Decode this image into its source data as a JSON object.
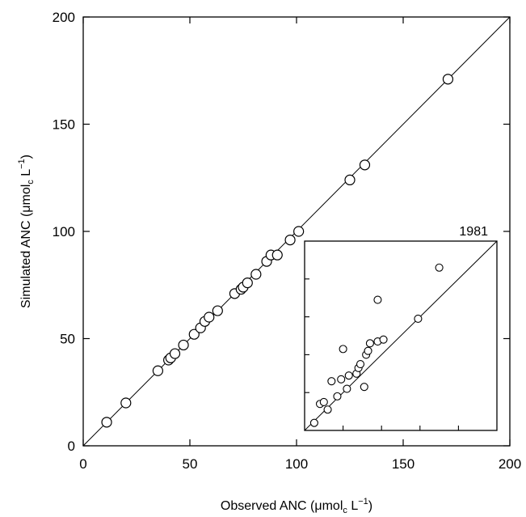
{
  "chart_data": [
    {
      "type": "scatter",
      "title": "",
      "xlabel": "Observed ANC (μmol",
      "xlabel_sub": "c",
      "xlabel_tail": " L",
      "xlabel_sup": "−1",
      "xlabel_close": ")",
      "ylabel": "Simulated ANC (μmol",
      "ylabel_sub": "c",
      "ylabel_tail": " L",
      "ylabel_sup": "−1",
      "ylabel_close": ")",
      "xlim": [
        0,
        200
      ],
      "ylim": [
        0,
        200
      ],
      "xticks": [
        0,
        50,
        100,
        150,
        200
      ],
      "yticks": [
        0,
        50,
        100,
        150,
        200
      ],
      "grid": false,
      "reference_line": "1:1",
      "marker": "open-circle",
      "points": [
        {
          "x": 11,
          "y": 11
        },
        {
          "x": 20,
          "y": 20
        },
        {
          "x": 35,
          "y": 35
        },
        {
          "x": 40,
          "y": 40
        },
        {
          "x": 41,
          "y": 41
        },
        {
          "x": 43,
          "y": 43
        },
        {
          "x": 47,
          "y": 47
        },
        {
          "x": 52,
          "y": 52
        },
        {
          "x": 55,
          "y": 55
        },
        {
          "x": 57,
          "y": 58
        },
        {
          "x": 59,
          "y": 60
        },
        {
          "x": 63,
          "y": 63
        },
        {
          "x": 71,
          "y": 71
        },
        {
          "x": 74,
          "y": 73
        },
        {
          "x": 75,
          "y": 74
        },
        {
          "x": 77,
          "y": 76
        },
        {
          "x": 81,
          "y": 80
        },
        {
          "x": 86,
          "y": 86
        },
        {
          "x": 88,
          "y": 89
        },
        {
          "x": 91,
          "y": 89
        },
        {
          "x": 97,
          "y": 96
        },
        {
          "x": 101,
          "y": 100
        },
        {
          "x": 125,
          "y": 124
        },
        {
          "x": 132,
          "y": 131
        },
        {
          "x": 171,
          "y": 171
        }
      ]
    },
    {
      "type": "scatter",
      "title": "1981",
      "reference_line": "1:1",
      "marker": "open-circle",
      "axis_labels_shown": false,
      "xlim": [
        0,
        100
      ],
      "ylim": [
        0,
        100
      ],
      "yticks": [
        0,
        20,
        40,
        60,
        80,
        100
      ],
      "xticks": [
        0,
        20,
        40,
        60,
        80,
        100
      ],
      "points": [
        {
          "x": 5,
          "y": 4
        },
        {
          "x": 8,
          "y": 14
        },
        {
          "x": 10,
          "y": 15
        },
        {
          "x": 12,
          "y": 11
        },
        {
          "x": 14,
          "y": 26
        },
        {
          "x": 17,
          "y": 18
        },
        {
          "x": 19,
          "y": 27
        },
        {
          "x": 20,
          "y": 43
        },
        {
          "x": 22,
          "y": 22
        },
        {
          "x": 23,
          "y": 29
        },
        {
          "x": 27,
          "y": 30
        },
        {
          "x": 28,
          "y": 33
        },
        {
          "x": 29,
          "y": 35
        },
        {
          "x": 31,
          "y": 23
        },
        {
          "x": 32,
          "y": 40
        },
        {
          "x": 33,
          "y": 42
        },
        {
          "x": 34,
          "y": 46
        },
        {
          "x": 38,
          "y": 47
        },
        {
          "x": 38,
          "y": 69
        },
        {
          "x": 41,
          "y": 48
        },
        {
          "x": 59,
          "y": 59
        },
        {
          "x": 70,
          "y": 86
        }
      ]
    }
  ]
}
